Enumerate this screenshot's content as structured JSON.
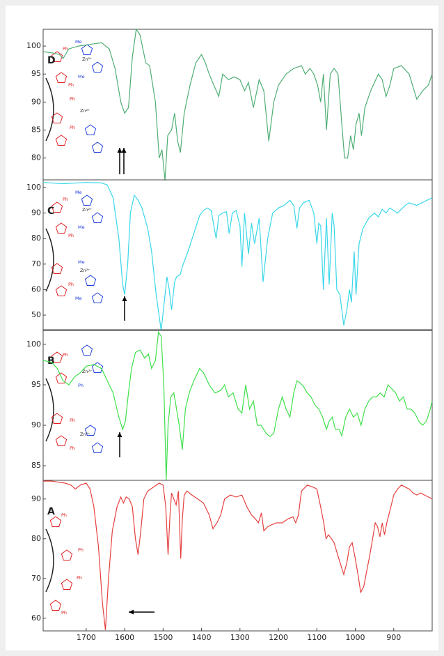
{
  "chart_data": [
    {
      "type": "line",
      "label": "D",
      "color": "#4fae74",
      "structure_labels": [
        "Ph",
        "Me",
        "Zn²⁺",
        "Me",
        "Ph",
        "Ph",
        "Zn²⁺",
        "Ph"
      ],
      "x": [
        1812,
        1790,
        1770,
        1760,
        1745,
        1720,
        1690,
        1660,
        1640,
        1625,
        1610,
        1600,
        1590,
        1580,
        1570,
        1560,
        1545,
        1535,
        1520,
        1510,
        1503,
        1495,
        1488,
        1478,
        1470,
        1462,
        1455,
        1445,
        1430,
        1415,
        1400,
        1390,
        1380,
        1368,
        1355,
        1345,
        1330,
        1315,
        1300,
        1288,
        1278,
        1265,
        1250,
        1238,
        1225,
        1212,
        1200,
        1180,
        1160,
        1140,
        1130,
        1118,
        1108,
        1098,
        1090,
        1083,
        1075,
        1065,
        1055,
        1045,
        1035,
        1028,
        1020,
        1012,
        1005,
        998,
        990,
        984,
        975,
        960,
        940,
        930,
        920,
        910,
        900,
        880,
        860,
        840,
        825,
        810,
        800
      ],
      "values": [
        99,
        98.8,
        98.5,
        97.8,
        99.5,
        100,
        100.3,
        100.6,
        99.5,
        96,
        90,
        88,
        89,
        98,
        103,
        102,
        97,
        96.5,
        90,
        80,
        81.5,
        76,
        84,
        85,
        88,
        83,
        81,
        88,
        93,
        97,
        98.5,
        97,
        95,
        93,
        91,
        95,
        94,
        94.5,
        94,
        92,
        93.5,
        89,
        94,
        92,
        83,
        90,
        93,
        95,
        96,
        96.5,
        95,
        96,
        95,
        93,
        90,
        95,
        85,
        95,
        96,
        95,
        86,
        80,
        80,
        84,
        81.5,
        86,
        88,
        84,
        89,
        92,
        95,
        94,
        91,
        93,
        96,
        96.5,
        95,
        90.5,
        92,
        93,
        95
      ],
      "ylim": [
        76.1,
        103
      ],
      "yticks": [
        80,
        85,
        90,
        95,
        100
      ],
      "xlim": [
        1812,
        800
      ]
    },
    {
      "type": "line",
      "label": "C",
      "color": "#37d7ea",
      "structure_labels": [
        "Ph",
        "Me",
        "Zn²⁺",
        "Me",
        "Ph",
        "Me",
        "Zn²⁺",
        "Ph",
        "Me"
      ],
      "x": [
        1812,
        1760,
        1700,
        1660,
        1645,
        1630,
        1615,
        1605,
        1600,
        1592,
        1585,
        1575,
        1565,
        1555,
        1540,
        1530,
        1518,
        1505,
        1497,
        1490,
        1484,
        1478,
        1470,
        1465,
        1455,
        1450,
        1435,
        1420,
        1405,
        1395,
        1385,
        1375,
        1368,
        1362,
        1355,
        1345,
        1335,
        1328,
        1320,
        1310,
        1300,
        1295,
        1288,
        1278,
        1270,
        1262,
        1250,
        1240,
        1228,
        1215,
        1200,
        1185,
        1170,
        1160,
        1152,
        1145,
        1135,
        1120,
        1108,
        1100,
        1095,
        1090,
        1083,
        1075,
        1068,
        1060,
        1055,
        1048,
        1040,
        1030,
        1022,
        1015,
        1010,
        1003,
        998,
        990,
        980,
        965,
        950,
        940,
        930,
        920,
        910,
        890,
        870,
        860,
        840,
        820,
        800
      ],
      "values": [
        102,
        101.5,
        102,
        101.8,
        101,
        96,
        80,
        62,
        58,
        70,
        90,
        97,
        95,
        92,
        84,
        75,
        58,
        44,
        55,
        65,
        60,
        52,
        63,
        65,
        66,
        69,
        75,
        82,
        89,
        91,
        92,
        91,
        85,
        80,
        89,
        90,
        90.5,
        82,
        90,
        91,
        85,
        69,
        90,
        74,
        86,
        78,
        88,
        63,
        80,
        90,
        92,
        93,
        95,
        93,
        84,
        92,
        94,
        95,
        90,
        78,
        86,
        85,
        60,
        88,
        62,
        90,
        85,
        60,
        58,
        46,
        52,
        60,
        55,
        75,
        58,
        78,
        84,
        88,
        90,
        88.5,
        91.5,
        90,
        92,
        90,
        93,
        94,
        93,
        94.5,
        96
      ],
      "ylim": [
        44,
        103
      ],
      "yticks": [
        50,
        60,
        70,
        80,
        90,
        100
      ],
      "xlim": [
        1812,
        800
      ]
    },
    {
      "type": "line",
      "label": "B",
      "color": "#3ee04a",
      "structure_labels": [
        "Ph",
        "Zn²⁺",
        "Ph",
        "Ph",
        "Zn²⁺",
        "Ph"
      ],
      "x": [
        1812,
        1790,
        1775,
        1760,
        1745,
        1730,
        1715,
        1700,
        1680,
        1660,
        1645,
        1630,
        1615,
        1605,
        1598,
        1590,
        1582,
        1572,
        1560,
        1548,
        1538,
        1530,
        1520,
        1512,
        1505,
        1498,
        1492,
        1487,
        1480,
        1472,
        1465,
        1458,
        1450,
        1442,
        1432,
        1420,
        1405,
        1395,
        1380,
        1365,
        1350,
        1340,
        1330,
        1318,
        1305,
        1295,
        1285,
        1275,
        1265,
        1255,
        1245,
        1232,
        1222,
        1212,
        1200,
        1190,
        1180,
        1170,
        1160,
        1152,
        1145,
        1135,
        1125,
        1115,
        1105,
        1095,
        1085,
        1075,
        1068,
        1060,
        1052,
        1042,
        1035,
        1025,
        1015,
        1005,
        995,
        985,
        975,
        965,
        955,
        945,
        935,
        925,
        915,
        905,
        895,
        885,
        875,
        865,
        855,
        845,
        835,
        825,
        815,
        805,
        800
      ],
      "values": [
        98,
        97.8,
        97,
        95.5,
        95,
        96,
        96.5,
        97.3,
        97.5,
        97,
        95.5,
        94,
        91,
        89.5,
        90.5,
        94,
        97,
        99,
        99.3,
        98.3,
        98.8,
        97,
        98,
        101.5,
        101,
        95,
        83.2,
        90,
        93.5,
        94,
        92,
        90,
        87,
        92,
        94,
        95.5,
        97,
        96.5,
        95,
        94,
        94.3,
        95,
        93.5,
        94,
        92,
        91.5,
        95,
        92,
        93,
        90,
        90,
        89,
        88.6,
        89,
        92,
        93.5,
        92,
        91,
        94,
        95.5,
        95.3,
        94.8,
        94,
        93.5,
        92.5,
        92,
        91,
        89.5,
        90.5,
        91,
        89.5,
        89.5,
        88.7,
        91,
        92,
        91,
        91.5,
        90,
        92,
        93,
        93.5,
        93.5,
        94,
        93.5,
        95,
        94.5,
        94,
        93,
        93.5,
        92,
        92,
        91.5,
        90.5,
        90,
        90.5,
        92,
        93
      ],
      "ylim": [
        83.2,
        101.8
      ],
      "yticks": [
        85,
        90,
        95,
        100
      ],
      "xlim": [
        1812,
        800
      ]
    },
    {
      "type": "line",
      "label": "A",
      "color": "#e5403d",
      "structure_labels": [
        "Ph",
        "Ph",
        "Ph",
        "Ph"
      ],
      "x": [
        1812,
        1790,
        1770,
        1755,
        1740,
        1728,
        1715,
        1700,
        1690,
        1680,
        1668,
        1658,
        1650,
        1642,
        1632,
        1620,
        1610,
        1603,
        1596,
        1588,
        1580,
        1572,
        1565,
        1558,
        1550,
        1540,
        1525,
        1510,
        1500,
        1493,
        1487,
        1482,
        1478,
        1472,
        1466,
        1460,
        1454,
        1450,
        1445,
        1438,
        1425,
        1410,
        1395,
        1380,
        1370,
        1360,
        1350,
        1340,
        1325,
        1310,
        1295,
        1282,
        1270,
        1260,
        1252,
        1244,
        1238,
        1228,
        1218,
        1205,
        1190,
        1175,
        1162,
        1155,
        1148,
        1140,
        1125,
        1110,
        1100,
        1090,
        1082,
        1076,
        1070,
        1062,
        1055,
        1046,
        1038,
        1030,
        1022,
        1015,
        1008,
        1000,
        993,
        986,
        978,
        970,
        962,
        955,
        948,
        942,
        936,
        930,
        924,
        918,
        910,
        900,
        890,
        880,
        870,
        860,
        850,
        840,
        830,
        820,
        810,
        800
      ],
      "values": [
        94.5,
        94.5,
        94.2,
        94,
        93.5,
        92.5,
        93.5,
        94,
        92.5,
        88,
        78,
        64,
        57,
        70,
        82,
        88,
        90.5,
        89,
        90.5,
        90,
        88,
        80,
        76,
        82,
        90,
        92,
        93,
        94,
        93.5,
        88,
        76,
        86,
        91.5,
        90,
        88.5,
        92,
        75,
        85,
        91,
        92,
        91,
        90,
        89,
        86,
        82.5,
        84,
        86,
        90,
        91,
        90.5,
        91,
        88,
        86,
        85,
        84,
        86.5,
        82,
        83,
        83.5,
        84,
        84,
        85,
        85.5,
        84,
        86,
        92,
        93.5,
        93,
        92.5,
        88,
        84,
        80,
        81,
        80,
        79,
        76,
        73.5,
        71,
        74,
        78,
        79,
        75,
        71,
        66.5,
        68,
        72,
        76,
        80,
        84,
        83,
        80.5,
        84,
        81,
        84,
        87,
        91,
        92.5,
        93.5,
        93,
        92.5,
        91.5,
        91,
        91.5,
        91,
        90.5,
        90
      ],
      "ylim": [
        56.8,
        94.7
      ],
      "yticks": [
        60,
        70,
        80,
        90
      ],
      "xlim": [
        1812,
        800
      ],
      "xticks": [
        1700,
        1600,
        1500,
        1400,
        1300,
        1200,
        1100,
        1000,
        900
      ]
    }
  ]
}
